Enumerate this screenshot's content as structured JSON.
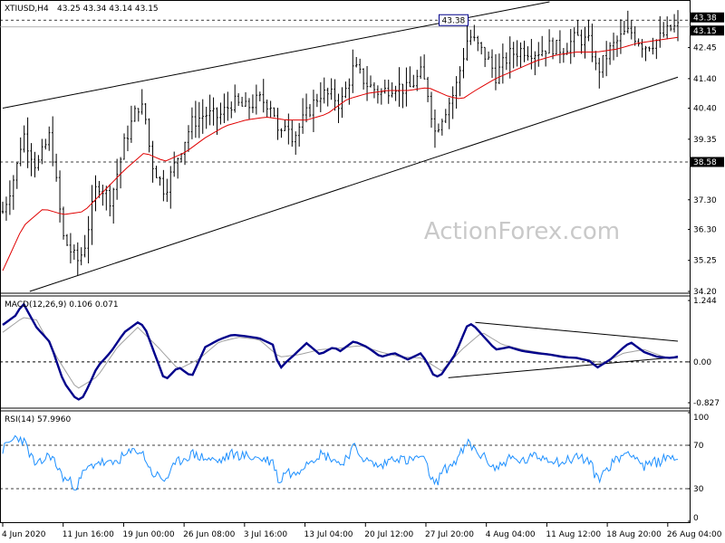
{
  "header": {
    "symbol": "XTIUSD,H4",
    "ohlc": "43.25 43.34 43.14 43.15"
  },
  "watermark": "ActionForex.com",
  "colors": {
    "candles": "#000000",
    "ma": "#e00000",
    "macd_line": "#00008b",
    "macd_signal": "#a0a0a0",
    "rsi": "#1e90ff",
    "price_tag_bg": "#000000",
    "price_tag_fg": "#ffffff",
    "hline": "#000000"
  },
  "chart_data": [
    {
      "type": "candlestick",
      "title": "XTIUSD,H4",
      "ylim": [
        34.2,
        44.0
      ],
      "y_ticks": [
        "43.38",
        "43.15",
        "42.45",
        "41.40",
        "40.40",
        "39.35",
        "38.58",
        "37.30",
        "36.30",
        "35.25",
        "34.20"
      ],
      "price_tags": [
        {
          "value": 43.38,
          "label": "43.38"
        },
        {
          "value": 43.15,
          "label": "43.15"
        },
        {
          "value": 38.58,
          "label": "38.58"
        }
      ],
      "annotations": [
        {
          "label": "43.38"
        }
      ],
      "horizontal_lines": [
        43.38,
        38.58
      ],
      "trend_lines": [
        {
          "from": [
            0,
            40.4
          ],
          "to": [
            0.81,
            44.0
          ]
        },
        {
          "from": [
            0.04,
            34.2
          ],
          "to": [
            1.0,
            41.45
          ]
        }
      ],
      "x_labels": [
        "4 Jun 2020",
        "11 Jun 16:00",
        "19 Jun 00:00",
        "26 Jun 08:00",
        "3 Jul 16:00",
        "13 Jul 04:00",
        "20 Jul 12:00",
        "27 Jul 20:00",
        "4 Aug 04:00",
        "11 Aug 12:00",
        "18 Aug 20:00",
        "26 Aug 04:00"
      ],
      "close_anchors": [
        [
          0.0,
          36.9
        ],
        [
          0.02,
          38.3
        ],
        [
          0.03,
          39.6
        ],
        [
          0.05,
          38.4
        ],
        [
          0.07,
          39.5
        ],
        [
          0.09,
          36.0
        ],
        [
          0.11,
          35.2
        ],
        [
          0.12,
          35.6
        ],
        [
          0.14,
          37.9
        ],
        [
          0.16,
          37.3
        ],
        [
          0.18,
          39.2
        ],
        [
          0.2,
          40.5
        ],
        [
          0.21,
          40.3
        ],
        [
          0.22,
          38.6
        ],
        [
          0.24,
          37.6
        ],
        [
          0.26,
          38.8
        ],
        [
          0.28,
          39.9
        ],
        [
          0.3,
          40.2
        ],
        [
          0.32,
          40.1
        ],
        [
          0.34,
          40.6
        ],
        [
          0.36,
          40.4
        ],
        [
          0.38,
          40.7
        ],
        [
          0.4,
          40.5
        ],
        [
          0.41,
          39.2
        ],
        [
          0.42,
          40.1
        ],
        [
          0.43,
          39.4
        ],
        [
          0.45,
          40.2
        ],
        [
          0.47,
          40.9
        ],
        [
          0.49,
          40.8
        ],
        [
          0.5,
          40.5
        ],
        [
          0.52,
          41.8
        ],
        [
          0.54,
          41.2
        ],
        [
          0.56,
          40.9
        ],
        [
          0.58,
          41.2
        ],
        [
          0.6,
          41.0
        ],
        [
          0.62,
          41.6
        ],
        [
          0.63,
          40.9
        ],
        [
          0.64,
          39.6
        ],
        [
          0.65,
          40.1
        ],
        [
          0.67,
          41.0
        ],
        [
          0.69,
          42.9
        ],
        [
          0.7,
          42.6
        ],
        [
          0.72,
          42.0
        ],
        [
          0.73,
          41.5
        ],
        [
          0.75,
          42.2
        ],
        [
          0.77,
          42.4
        ],
        [
          0.79,
          42.3
        ],
        [
          0.81,
          42.5
        ],
        [
          0.83,
          42.4
        ],
        [
          0.85,
          42.8
        ],
        [
          0.87,
          42.6
        ],
        [
          0.88,
          41.6
        ],
        [
          0.9,
          42.4
        ],
        [
          0.92,
          42.9
        ],
        [
          0.93,
          43.0
        ],
        [
          0.95,
          42.5
        ],
        [
          0.97,
          42.7
        ],
        [
          0.99,
          43.1
        ],
        [
          1.0,
          43.15
        ]
      ],
      "ma_anchors": [
        [
          0.0,
          34.9
        ],
        [
          0.03,
          36.4
        ],
        [
          0.06,
          37.0
        ],
        [
          0.09,
          36.8
        ],
        [
          0.12,
          36.9
        ],
        [
          0.15,
          37.6
        ],
        [
          0.18,
          38.3
        ],
        [
          0.21,
          38.9
        ],
        [
          0.24,
          38.6
        ],
        [
          0.27,
          38.9
        ],
        [
          0.3,
          39.4
        ],
        [
          0.33,
          39.8
        ],
        [
          0.36,
          40.0
        ],
        [
          0.39,
          40.1
        ],
        [
          0.42,
          40.0
        ],
        [
          0.45,
          40.0
        ],
        [
          0.48,
          40.2
        ],
        [
          0.51,
          40.7
        ],
        [
          0.54,
          40.9
        ],
        [
          0.57,
          41.0
        ],
        [
          0.6,
          41.0
        ],
        [
          0.63,
          41.1
        ],
        [
          0.66,
          40.8
        ],
        [
          0.68,
          40.7
        ],
        [
          0.7,
          41.0
        ],
        [
          0.73,
          41.4
        ],
        [
          0.76,
          41.7
        ],
        [
          0.79,
          42.0
        ],
        [
          0.82,
          42.2
        ],
        [
          0.85,
          42.3
        ],
        [
          0.88,
          42.3
        ],
        [
          0.91,
          42.4
        ],
        [
          0.94,
          42.6
        ],
        [
          0.97,
          42.7
        ],
        [
          1.0,
          42.8
        ]
      ]
    },
    {
      "type": "line",
      "title": "MACD(12,26,9) 0.106 0.071",
      "ylim": [
        -0.9,
        1.3
      ],
      "y_ticks": [
        "1.244",
        "0.00",
        "-0.827"
      ],
      "series": [
        {
          "name": "MACD(12,26,9)"
        }
      ],
      "macd_anchors": [
        [
          0.0,
          0.75
        ],
        [
          0.02,
          0.95
        ],
        [
          0.03,
          1.2
        ],
        [
          0.05,
          0.7
        ],
        [
          0.07,
          0.4
        ],
        [
          0.09,
          -0.4
        ],
        [
          0.11,
          -0.78
        ],
        [
          0.12,
          -0.7
        ],
        [
          0.14,
          -0.1
        ],
        [
          0.16,
          0.2
        ],
        [
          0.18,
          0.6
        ],
        [
          0.2,
          0.8
        ],
        [
          0.21,
          0.72
        ],
        [
          0.22,
          0.35
        ],
        [
          0.24,
          -0.38
        ],
        [
          0.26,
          -0.1
        ],
        [
          0.28,
          -0.3
        ],
        [
          0.3,
          0.3
        ],
        [
          0.32,
          0.45
        ],
        [
          0.34,
          0.55
        ],
        [
          0.36,
          0.52
        ],
        [
          0.38,
          0.48
        ],
        [
          0.4,
          0.35
        ],
        [
          0.41,
          -0.15
        ],
        [
          0.42,
          0.0
        ],
        [
          0.43,
          0.12
        ],
        [
          0.45,
          0.38
        ],
        [
          0.47,
          0.15
        ],
        [
          0.49,
          0.3
        ],
        [
          0.5,
          0.22
        ],
        [
          0.52,
          0.42
        ],
        [
          0.54,
          0.3
        ],
        [
          0.56,
          0.1
        ],
        [
          0.58,
          0.18
        ],
        [
          0.6,
          0.05
        ],
        [
          0.62,
          0.18
        ],
        [
          0.63,
          -0.05
        ],
        [
          0.64,
          -0.32
        ],
        [
          0.65,
          -0.25
        ],
        [
          0.67,
          0.15
        ],
        [
          0.69,
          0.8
        ],
        [
          0.7,
          0.7
        ],
        [
          0.72,
          0.4
        ],
        [
          0.73,
          0.25
        ],
        [
          0.75,
          0.3
        ],
        [
          0.77,
          0.22
        ],
        [
          0.79,
          0.18
        ],
        [
          0.81,
          0.15
        ],
        [
          0.83,
          0.1
        ],
        [
          0.85,
          0.08
        ],
        [
          0.87,
          0.02
        ],
        [
          0.88,
          -0.12
        ],
        [
          0.9,
          0.05
        ],
        [
          0.92,
          0.3
        ],
        [
          0.93,
          0.4
        ],
        [
          0.95,
          0.2
        ],
        [
          0.97,
          0.1
        ],
        [
          0.99,
          0.08
        ],
        [
          1.0,
          0.106
        ]
      ],
      "signal_anchors": [
        [
          0.0,
          0.6
        ],
        [
          0.03,
          0.9
        ],
        [
          0.05,
          0.85
        ],
        [
          0.08,
          0.1
        ],
        [
          0.11,
          -0.55
        ],
        [
          0.14,
          -0.3
        ],
        [
          0.17,
          0.3
        ],
        [
          0.2,
          0.7
        ],
        [
          0.23,
          0.3
        ],
        [
          0.26,
          -0.15
        ],
        [
          0.29,
          0.05
        ],
        [
          0.32,
          0.4
        ],
        [
          0.35,
          0.5
        ],
        [
          0.38,
          0.45
        ],
        [
          0.41,
          0.1
        ],
        [
          0.44,
          0.15
        ],
        [
          0.47,
          0.25
        ],
        [
          0.5,
          0.28
        ],
        [
          0.53,
          0.33
        ],
        [
          0.56,
          0.2
        ],
        [
          0.59,
          0.1
        ],
        [
          0.62,
          0.08
        ],
        [
          0.65,
          -0.18
        ],
        [
          0.68,
          0.25
        ],
        [
          0.71,
          0.6
        ],
        [
          0.74,
          0.35
        ],
        [
          0.77,
          0.25
        ],
        [
          0.8,
          0.18
        ],
        [
          0.83,
          0.12
        ],
        [
          0.86,
          0.05
        ],
        [
          0.89,
          -0.02
        ],
        [
          0.92,
          0.18
        ],
        [
          0.95,
          0.25
        ],
        [
          0.98,
          0.1
        ],
        [
          1.0,
          0.071
        ]
      ],
      "trend_lines": [
        {
          "from": [
            0.7,
            0.8
          ],
          "to": [
            1.0,
            0.42
          ]
        },
        {
          "from": [
            0.66,
            -0.32
          ],
          "to": [
            1.0,
            0.1
          ]
        }
      ]
    },
    {
      "type": "line",
      "title": "RSI(14) 57.9960",
      "ylim": [
        0,
        100
      ],
      "y_ticks": [
        "100",
        "70",
        "30",
        "0"
      ],
      "levels": [
        70,
        30
      ],
      "series": [
        {
          "name": "RSI(14)"
        }
      ],
      "rsi_anchors": [
        [
          0.0,
          66
        ],
        [
          0.02,
          78
        ],
        [
          0.03,
          75
        ],
        [
          0.05,
          50
        ],
        [
          0.07,
          62
        ],
        [
          0.09,
          40
        ],
        [
          0.11,
          32
        ],
        [
          0.12,
          45
        ],
        [
          0.14,
          55
        ],
        [
          0.16,
          52
        ],
        [
          0.18,
          60
        ],
        [
          0.2,
          66
        ],
        [
          0.21,
          60
        ],
        [
          0.22,
          45
        ],
        [
          0.24,
          38
        ],
        [
          0.26,
          55
        ],
        [
          0.28,
          62
        ],
        [
          0.3,
          58
        ],
        [
          0.32,
          55
        ],
        [
          0.34,
          62
        ],
        [
          0.36,
          60
        ],
        [
          0.38,
          58
        ],
        [
          0.4,
          55
        ],
        [
          0.41,
          35
        ],
        [
          0.42,
          48
        ],
        [
          0.43,
          42
        ],
        [
          0.45,
          55
        ],
        [
          0.47,
          62
        ],
        [
          0.49,
          58
        ],
        [
          0.5,
          52
        ],
        [
          0.52,
          68
        ],
        [
          0.54,
          55
        ],
        [
          0.56,
          50
        ],
        [
          0.58,
          60
        ],
        [
          0.6,
          55
        ],
        [
          0.62,
          60
        ],
        [
          0.63,
          48
        ],
        [
          0.64,
          32
        ],
        [
          0.65,
          45
        ],
        [
          0.67,
          55
        ],
        [
          0.69,
          72
        ],
        [
          0.7,
          65
        ],
        [
          0.72,
          55
        ],
        [
          0.73,
          48
        ],
        [
          0.75,
          58
        ],
        [
          0.77,
          55
        ],
        [
          0.79,
          60
        ],
        [
          0.81,
          58
        ],
        [
          0.83,
          54
        ],
        [
          0.85,
          60
        ],
        [
          0.87,
          55
        ],
        [
          0.88,
          38
        ],
        [
          0.9,
          52
        ],
        [
          0.92,
          62
        ],
        [
          0.93,
          65
        ],
        [
          0.95,
          50
        ],
        [
          0.97,
          55
        ],
        [
          0.99,
          60
        ],
        [
          1.0,
          58
        ]
      ]
    }
  ]
}
